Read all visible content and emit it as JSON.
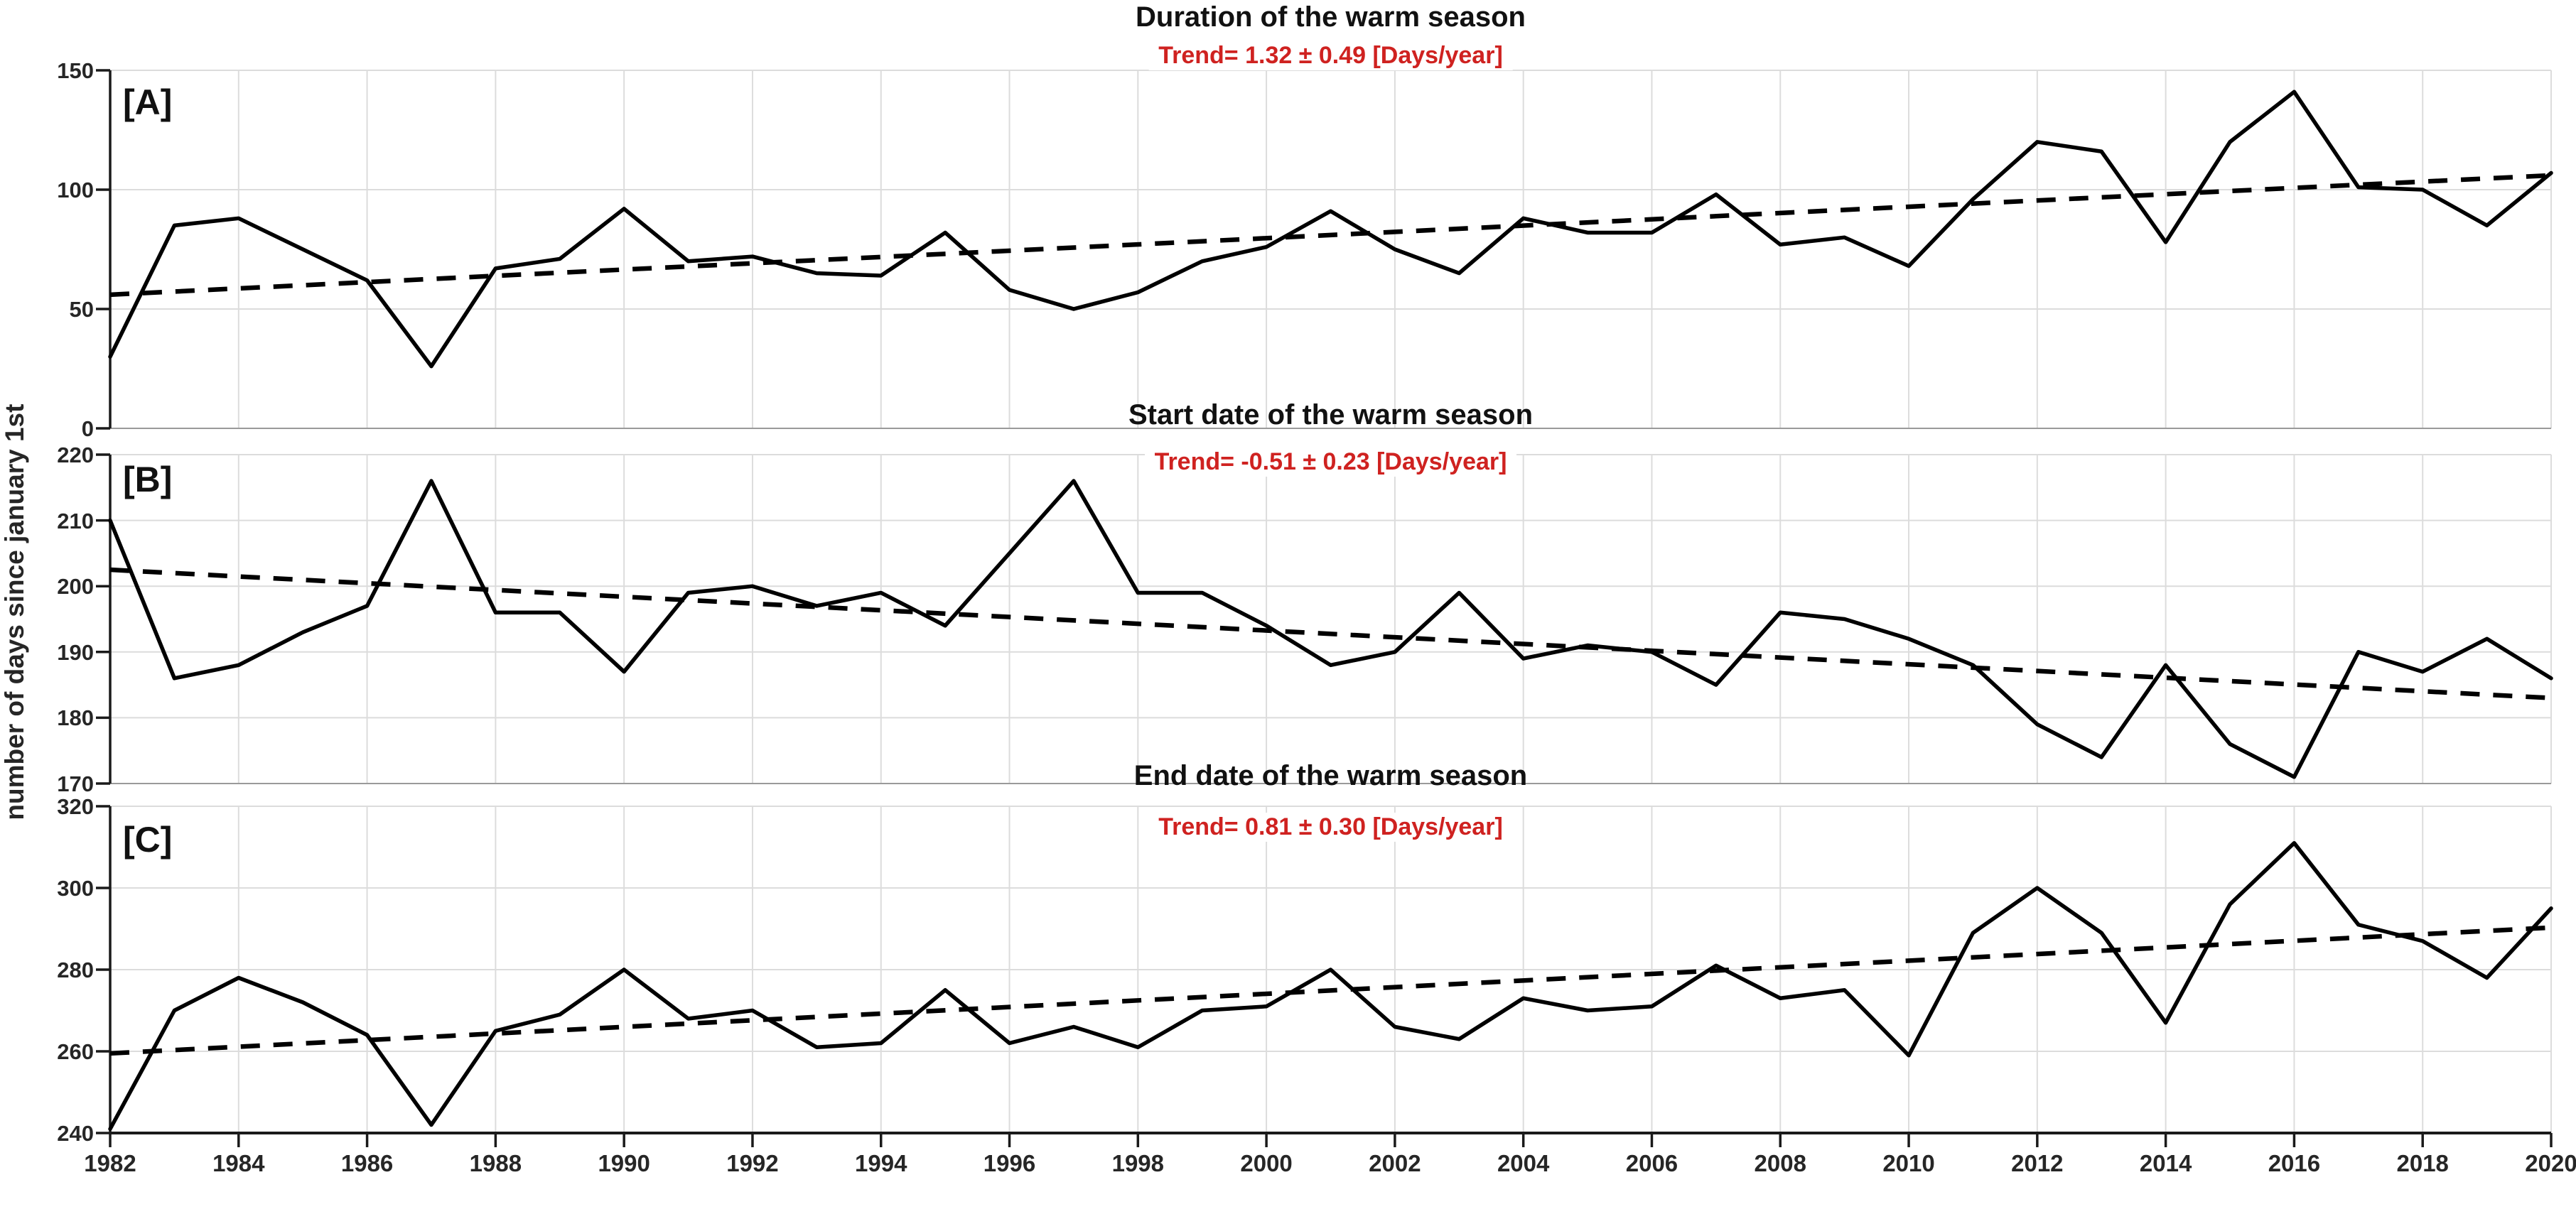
{
  "figure": {
    "ylabel": "number of days since january 1st",
    "background": "#ffffff",
    "line_color": "#000000",
    "grid_color": "#dcdcdc",
    "axis_color": "#1a1a1a"
  },
  "chart_data": [
    {
      "type": "line",
      "panel_label": "[A]",
      "title": "Duration of the warm season",
      "trend_label": "Trend= 1.32 ± 0.49 [Days/year]",
      "trend_color": "#cf2220",
      "x": [
        1982,
        1983,
        1984,
        1985,
        1986,
        1987,
        1988,
        1989,
        1990,
        1991,
        1992,
        1993,
        1994,
        1995,
        1996,
        1997,
        1998,
        1999,
        2000,
        2001,
        2002,
        2003,
        2004,
        2005,
        2006,
        2007,
        2008,
        2009,
        2010,
        2011,
        2012,
        2013,
        2014,
        2015,
        2016,
        2017,
        2018,
        2019,
        2020
      ],
      "values": [
        30,
        85,
        88,
        75,
        62,
        26,
        67,
        71,
        92,
        70,
        72,
        65,
        64,
        82,
        58,
        50,
        57,
        70,
        76,
        91,
        75,
        65,
        88,
        82,
        82,
        98,
        77,
        80,
        68,
        96,
        120,
        116,
        78,
        120,
        141,
        101,
        100,
        85,
        107
      ],
      "xlim": [
        1982,
        2020
      ],
      "ylim": [
        0,
        150
      ],
      "yticks": [
        0,
        50,
        100,
        150
      ],
      "xticks": [
        1982,
        1984,
        1986,
        1988,
        1990,
        1992,
        1994,
        1996,
        1998,
        2000,
        2002,
        2004,
        2006,
        2008,
        2010,
        2012,
        2014,
        2016,
        2018,
        2020
      ],
      "trend_line": {
        "x0": 1982,
        "y0": 56,
        "x1": 2020,
        "y1": 106
      },
      "grid": true,
      "legend": "none"
    },
    {
      "type": "line",
      "panel_label": "[B]",
      "title": "Start date of the warm season",
      "trend_label": "Trend= -0.51 ± 0.23 [Days/year]",
      "trend_color": "#cf2220",
      "x": [
        1982,
        1983,
        1984,
        1985,
        1986,
        1987,
        1988,
        1989,
        1990,
        1991,
        1992,
        1993,
        1994,
        1995,
        1996,
        1997,
        1998,
        1999,
        2000,
        2001,
        2002,
        2003,
        2004,
        2005,
        2006,
        2007,
        2008,
        2009,
        2010,
        2011,
        2012,
        2013,
        2014,
        2015,
        2016,
        2017,
        2018,
        2019,
        2020
      ],
      "values": [
        210,
        186,
        188,
        193,
        197,
        216,
        196,
        196,
        187,
        199,
        200,
        197,
        199,
        194,
        205,
        216,
        199,
        199,
        194,
        188,
        190,
        199,
        189,
        191,
        190,
        185,
        196,
        195,
        192,
        188,
        179,
        174,
        188,
        176,
        171,
        190,
        187,
        192,
        186
      ],
      "xlim": [
        1982,
        2020
      ],
      "ylim": [
        170,
        220
      ],
      "yticks": [
        170,
        180,
        190,
        200,
        210,
        220
      ],
      "xticks": [
        1982,
        1984,
        1986,
        1988,
        1990,
        1992,
        1994,
        1996,
        1998,
        2000,
        2002,
        2004,
        2006,
        2008,
        2010,
        2012,
        2014,
        2016,
        2018,
        2020
      ],
      "trend_line": {
        "x0": 1982,
        "y0": 202.5,
        "x1": 2020,
        "y1": 183
      },
      "grid": true,
      "legend": "none"
    },
    {
      "type": "line",
      "panel_label": "[C]",
      "title": "End date of the warm season",
      "trend_label": "Trend= 0.81 ± 0.30 [Days/year]",
      "trend_color": "#cf2220",
      "x": [
        1982,
        1983,
        1984,
        1985,
        1986,
        1987,
        1988,
        1989,
        1990,
        1991,
        1992,
        1993,
        1994,
        1995,
        1996,
        1997,
        1998,
        1999,
        2000,
        2001,
        2002,
        2003,
        2004,
        2005,
        2006,
        2007,
        2008,
        2009,
        2010,
        2011,
        2012,
        2013,
        2014,
        2015,
        2016,
        2017,
        2018,
        2019,
        2020
      ],
      "values": [
        241,
        270,
        278,
        272,
        264,
        242,
        265,
        269,
        280,
        268,
        270,
        261,
        262,
        275,
        262,
        266,
        261,
        270,
        271,
        280,
        266,
        263,
        273,
        270,
        271,
        281,
        273,
        275,
        259,
        289,
        300,
        289,
        267,
        296,
        311,
        291,
        287,
        278,
        295
      ],
      "xlim": [
        1982,
        2020
      ],
      "ylim": [
        240,
        320
      ],
      "yticks": [
        240,
        260,
        280,
        300,
        320
      ],
      "xticks": [
        1982,
        1984,
        1986,
        1988,
        1990,
        1992,
        1994,
        1996,
        1998,
        2000,
        2002,
        2004,
        2006,
        2008,
        2010,
        2012,
        2014,
        2016,
        2018,
        2020
      ],
      "trend_line": {
        "x0": 1982,
        "y0": 259.5,
        "x1": 2020,
        "y1": 290.3
      },
      "grid": true,
      "legend": "none"
    }
  ]
}
